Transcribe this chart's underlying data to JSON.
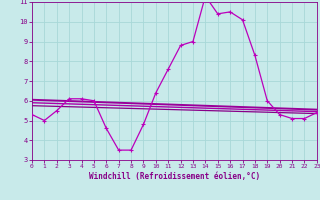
{
  "xlabel": "Windchill (Refroidissement éolien,°C)",
  "bg_color": "#c8eaea",
  "grid_color": "#a8d8d8",
  "xlim": [
    0,
    23
  ],
  "ylim": [
    3,
    11
  ],
  "yticks": [
    3,
    4,
    5,
    6,
    7,
    8,
    9,
    10,
    11
  ],
  "xticks": [
    0,
    1,
    2,
    3,
    4,
    5,
    6,
    7,
    8,
    9,
    10,
    11,
    12,
    13,
    14,
    15,
    16,
    17,
    18,
    19,
    20,
    21,
    22,
    23
  ],
  "series_main": {
    "x": [
      0,
      1,
      2,
      3,
      4,
      5,
      6,
      7,
      8,
      9,
      10,
      11,
      12,
      13,
      14,
      15,
      16,
      17,
      18,
      19,
      20,
      21,
      22,
      23
    ],
    "y": [
      5.3,
      5.0,
      5.5,
      6.1,
      6.1,
      6.0,
      4.6,
      3.5,
      3.5,
      4.8,
      6.4,
      7.6,
      8.8,
      9.0,
      11.3,
      10.4,
      10.5,
      10.1,
      8.3,
      6.0,
      5.3,
      5.1,
      5.1,
      5.4
    ],
    "color": "#bb00bb",
    "linewidth": 0.9,
    "markersize": 2.5
  },
  "flat_lines": [
    {
      "x0": 0,
      "x1": 23,
      "y0": 6.05,
      "y1": 5.55,
      "color": "#990099",
      "lw": 1.4
    },
    {
      "x0": 0,
      "x1": 23,
      "y0": 5.9,
      "y1": 5.45,
      "color": "#aa00aa",
      "lw": 1.0
    },
    {
      "x0": 0,
      "x1": 23,
      "y0": 5.75,
      "y1": 5.35,
      "color": "#880088",
      "lw": 0.9
    }
  ]
}
